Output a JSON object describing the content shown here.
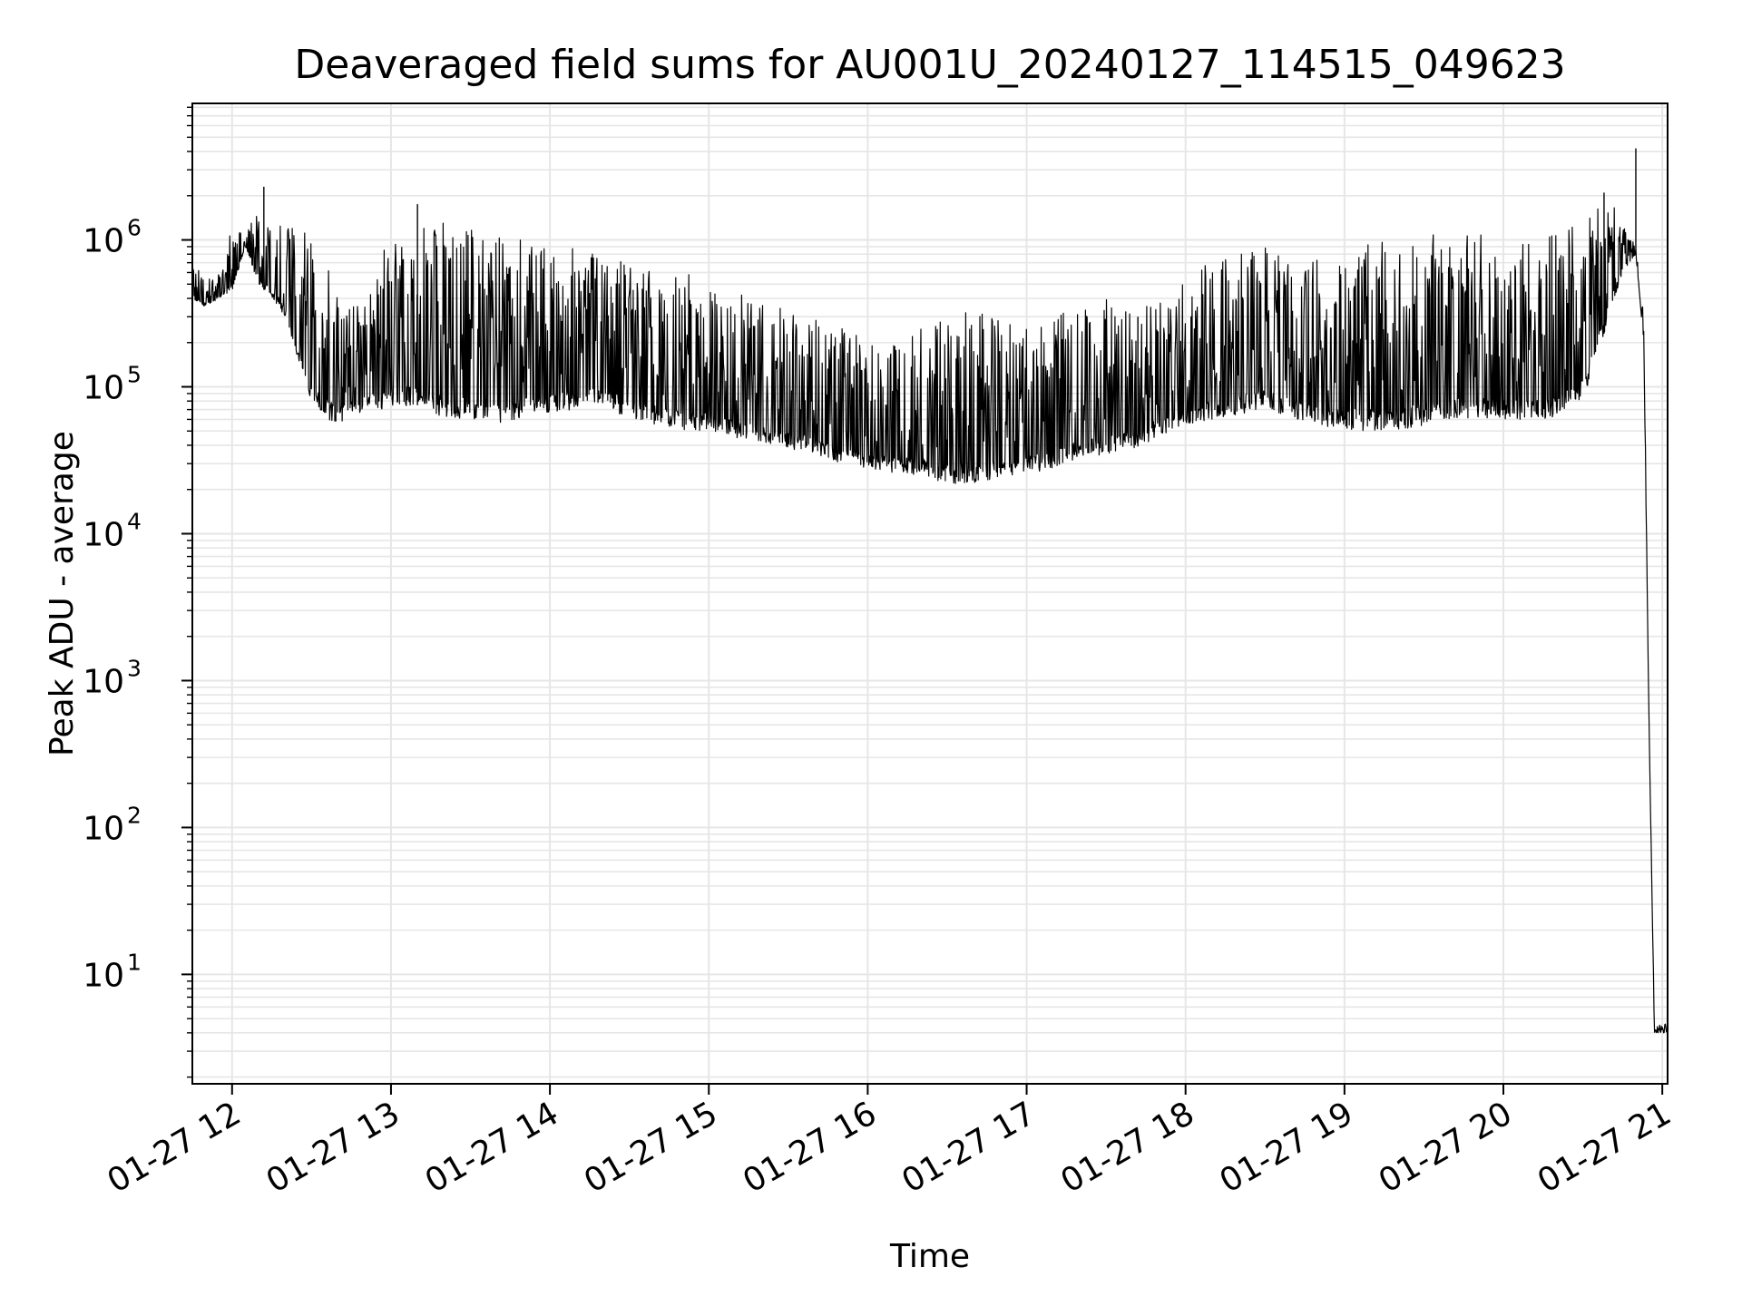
{
  "chart_data": {
    "type": "line",
    "title": "Deaveraged field sums for AU001U_20240127_114515_049623",
    "xlabel": "Time",
    "ylabel": "Peak ADU - average",
    "yscale": "log",
    "ylim": [
      1.8,
      8500000
    ],
    "xlim": [
      "01-27 11:45",
      "01-27 21:02"
    ],
    "grid": "on (major and minor, light gray)",
    "legend": "none",
    "line_color": "#000000",
    "grid_color": "#e6e6e6",
    "x_ticks": [
      "01-27 12",
      "01-27 13",
      "01-27 14",
      "01-27 15",
      "01-27 16",
      "01-27 17",
      "01-27 18",
      "01-27 19",
      "01-27 20",
      "01-27 21"
    ],
    "y_ticks": [
      {
        "base": "10",
        "exp": "1",
        "value": 10
      },
      {
        "base": "10",
        "exp": "2",
        "value": 100
      },
      {
        "base": "10",
        "exp": "3",
        "value": 1000
      },
      {
        "base": "10",
        "exp": "4",
        "value": 10000
      },
      {
        "base": "10",
        "exp": "5",
        "value": 100000
      },
      {
        "base": "10",
        "exp": "6",
        "value": 1000000
      }
    ],
    "series": [
      {
        "description_of_shape": "dense noisy trace; envelope values below",
        "x": [
          "11:45",
          "11:50",
          "11:55",
          "12:00",
          "12:05",
          "12:10",
          "12:15",
          "12:20",
          "12:30",
          "12:40",
          "12:50",
          "13:00",
          "13:10",
          "13:20",
          "13:30",
          "13:40",
          "13:50",
          "14:00",
          "14:10",
          "14:20",
          "14:30",
          "14:40",
          "14:50",
          "15:00",
          "15:10",
          "15:20",
          "15:30",
          "15:40",
          "15:50",
          "16:00",
          "16:10",
          "16:20",
          "16:30",
          "16:40",
          "16:50",
          "17:00",
          "17:10",
          "17:20",
          "17:30",
          "17:40",
          "17:50",
          "18:00",
          "18:10",
          "18:20",
          "18:30",
          "18:40",
          "18:50",
          "19:00",
          "19:10",
          "19:20",
          "19:30",
          "19:40",
          "19:50",
          "20:00",
          "20:10",
          "20:20",
          "20:30",
          "20:40",
          "20:45",
          "20:50",
          "20:53",
          "20:55",
          "20:57",
          "21:00",
          "21:02"
        ],
        "y_low": [
          400000,
          350000,
          400000,
          450000,
          900000,
          500000,
          400000,
          300000,
          70000,
          55000,
          70000,
          70000,
          75000,
          60000,
          60000,
          55000,
          60000,
          65000,
          70000,
          75000,
          60000,
          55000,
          50000,
          50000,
          45000,
          42000,
          38000,
          35000,
          30000,
          28000,
          26000,
          25000,
          22000,
          22000,
          24000,
          25000,
          28000,
          32000,
          35000,
          38000,
          45000,
          55000,
          60000,
          65000,
          70000,
          60000,
          55000,
          50000,
          50000,
          50000,
          55000,
          60000,
          60000,
          60000,
          60000,
          60000,
          80000,
          300000,
          600000,
          800000,
          200000,
          500,
          4,
          4,
          4
        ],
        "y_high": [
          700000,
          550000,
          600000,
          1200000,
          1300000,
          1500000,
          1400000,
          1300000,
          1200000,
          600000,
          400000,
          1200000,
          1300000,
          1300000,
          1200000,
          1100000,
          1000000,
          900000,
          900000,
          800000,
          700000,
          650000,
          600000,
          550000,
          450000,
          400000,
          350000,
          300000,
          250000,
          220000,
          200000,
          250000,
          300000,
          350000,
          300000,
          300000,
          300000,
          350000,
          400000,
          450000,
          500000,
          600000,
          700000,
          800000,
          900000,
          850000,
          800000,
          900000,
          1000000,
          1000000,
          1100000,
          1100000,
          1100000,
          1000000,
          1000000,
          1200000,
          1300000,
          2000000,
          1300000,
          900000,
          300000,
          500,
          4.6,
          4.6,
          4.6
        ],
        "peaks": [
          {
            "x": "12:12",
            "y": 2300000
          },
          {
            "x": "13:10",
            "y": 1750000
          },
          {
            "x": "17:42",
            "y": 300000
          },
          {
            "x": "20:50",
            "y": 4200000
          },
          {
            "x": "20:38",
            "y": 2100000
          }
        ],
        "tail_note": "after ~20:55 the trace drops abruptly to about 4 and stays there to the end with small flicker"
      }
    ]
  }
}
